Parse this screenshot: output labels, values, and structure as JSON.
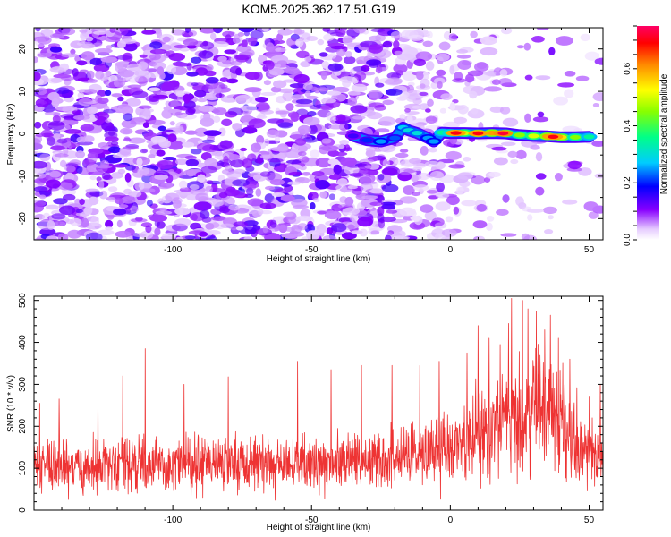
{
  "title": "KOM5.2025.362.17.51.G19",
  "chart_data": [
    {
      "type": "heatmap",
      "name": "spectrogram",
      "xlabel": "Height of straight line (km)",
      "ylabel": "Frequency (Hz)",
      "xlim": [
        -150,
        55
      ],
      "ylim": [
        -25,
        25
      ],
      "xticks": [
        -100,
        -50,
        0,
        50
      ],
      "xtick_labels": [
        "-100",
        "-50",
        "0",
        "50"
      ],
      "yticks": [
        -20,
        -10,
        0,
        10,
        20
      ],
      "ytick_labels": [
        "-20",
        "-10",
        "0",
        "10",
        "20"
      ],
      "colorbar": {
        "label": "Normalized spectral amplitude",
        "range": [
          0,
          0.75
        ],
        "ticks": [
          0.0,
          0.2,
          0.4,
          0.6
        ],
        "tick_labels": [
          "0.0",
          "0.2",
          "0.4",
          "0.6"
        ]
      },
      "signal_track": [
        {
          "x": -35,
          "y": -0.5,
          "amp": 0.15
        },
        {
          "x": -30,
          "y": -1.5,
          "amp": 0.2
        },
        {
          "x": -25,
          "y": -1.8,
          "amp": 0.25
        },
        {
          "x": -20,
          "y": -1.0,
          "amp": 0.22
        },
        {
          "x": -17,
          "y": 1.5,
          "amp": 0.28
        },
        {
          "x": -15,
          "y": 0.8,
          "amp": 0.3
        },
        {
          "x": -12,
          "y": 0.2,
          "amp": 0.3
        },
        {
          "x": -8,
          "y": -1.0,
          "amp": 0.25
        },
        {
          "x": -6,
          "y": -1.8,
          "amp": 0.25
        },
        {
          "x": -3,
          "y": 0.3,
          "amp": 0.35
        },
        {
          "x": 0,
          "y": 0.2,
          "amp": 0.4
        },
        {
          "x": 5,
          "y": 0.2,
          "amp": 0.5
        },
        {
          "x": 10,
          "y": 0.1,
          "amp": 0.55
        },
        {
          "x": 15,
          "y": 0.2,
          "amp": 0.6
        },
        {
          "x": 20,
          "y": 0.1,
          "amp": 0.55
        },
        {
          "x": 25,
          "y": -0.3,
          "amp": 0.45
        },
        {
          "x": 30,
          "y": -0.5,
          "amp": 0.5
        },
        {
          "x": 35,
          "y": -0.6,
          "amp": 0.6
        },
        {
          "x": 40,
          "y": -0.8,
          "amp": 0.55
        },
        {
          "x": 45,
          "y": -0.8,
          "amp": 0.45
        },
        {
          "x": 50,
          "y": -0.7,
          "amp": 0.35
        }
      ],
      "signal_peaks": [
        {
          "x": 2,
          "y": 0.2,
          "amp": 0.7
        },
        {
          "x": 10,
          "y": 0.1,
          "amp": 0.7
        },
        {
          "x": 19,
          "y": 0.1,
          "amp": 0.72
        },
        {
          "x": 37,
          "y": -0.7,
          "amp": 0.7
        }
      ]
    },
    {
      "type": "line",
      "name": "snr",
      "xlabel": "Height of straight line (km)",
      "ylabel": "SNR (10 * v/v)",
      "xlim": [
        -150,
        55
      ],
      "ylim": [
        0,
        510
      ],
      "xticks": [
        -100,
        -50,
        0,
        50
      ],
      "xtick_labels": [
        "-100",
        "-50",
        "0",
        "50"
      ],
      "yticks": [
        0,
        100,
        200,
        300,
        400,
        500
      ],
      "ytick_labels": [
        "0",
        "100",
        "200",
        "300",
        "400",
        "500"
      ],
      "color": "#ee3333",
      "baseline": [
        {
          "x": -150,
          "y": 105
        },
        {
          "x": -100,
          "y": 108
        },
        {
          "x": -60,
          "y": 110
        },
        {
          "x": -20,
          "y": 118
        },
        {
          "x": 0,
          "y": 150
        },
        {
          "x": 15,
          "y": 185
        },
        {
          "x": 25,
          "y": 225
        },
        {
          "x": 35,
          "y": 240
        },
        {
          "x": 42,
          "y": 200
        },
        {
          "x": 48,
          "y": 150
        },
        {
          "x": 55,
          "y": 120
        }
      ],
      "peaks": [
        {
          "x": -148,
          "y": 255
        },
        {
          "x": -141,
          "y": 265
        },
        {
          "x": -127,
          "y": 300
        },
        {
          "x": -118,
          "y": 320
        },
        {
          "x": -110,
          "y": 385
        },
        {
          "x": -96,
          "y": 300
        },
        {
          "x": -80,
          "y": 318
        },
        {
          "x": -55,
          "y": 355
        },
        {
          "x": -43,
          "y": 335
        },
        {
          "x": -32,
          "y": 345
        },
        {
          "x": -21,
          "y": 345
        },
        {
          "x": -11,
          "y": 345
        },
        {
          "x": -4,
          "y": 355
        },
        {
          "x": 6,
          "y": 375
        },
        {
          "x": 10,
          "y": 440
        },
        {
          "x": 14,
          "y": 410
        },
        {
          "x": 18,
          "y": 395
        },
        {
          "x": 21,
          "y": 445
        },
        {
          "x": 22,
          "y": 505
        },
        {
          "x": 26,
          "y": 500
        },
        {
          "x": 28,
          "y": 480
        },
        {
          "x": 31,
          "y": 475
        },
        {
          "x": 34,
          "y": 430
        },
        {
          "x": 36,
          "y": 465
        },
        {
          "x": 39,
          "y": 410
        },
        {
          "x": 43,
          "y": 360
        },
        {
          "x": 50,
          "y": 270
        },
        {
          "x": 54,
          "y": 300
        }
      ]
    }
  ]
}
